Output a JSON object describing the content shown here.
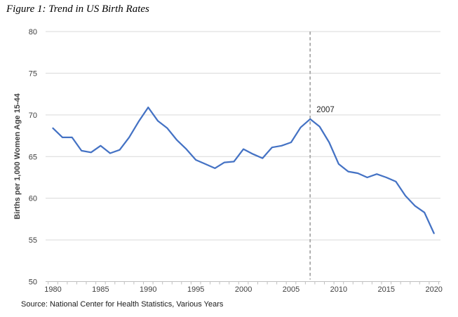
{
  "page": {
    "title": "Figure 1: Trend in US Birth Rates",
    "source_note": "Source: National Center for Health Statistics, Various Years"
  },
  "chart_data": {
    "type": "line",
    "title": "Figure 1: Trend in US Birth Rates",
    "xlabel": "",
    "ylabel": "Births per 1,000 Women Age 15-44",
    "x": [
      1980,
      1981,
      1982,
      1983,
      1984,
      1985,
      1986,
      1987,
      1988,
      1989,
      1990,
      1991,
      1992,
      1993,
      1994,
      1995,
      1996,
      1997,
      1998,
      1999,
      2000,
      2001,
      2002,
      2003,
      2004,
      2005,
      2006,
      2007,
      2008,
      2009,
      2010,
      2011,
      2012,
      2013,
      2014,
      2015,
      2016,
      2017,
      2018,
      2019,
      2020
    ],
    "series": [
      {
        "name": "Births per 1,000 Women Age 15-44",
        "values": [
          68.4,
          67.3,
          67.3,
          65.7,
          65.5,
          66.3,
          65.4,
          65.8,
          67.3,
          69.2,
          70.9,
          69.3,
          68.4,
          67.0,
          65.9,
          64.6,
          64.1,
          63.6,
          64.3,
          64.4,
          65.9,
          65.3,
          64.8,
          66.1,
          66.3,
          66.7,
          68.5,
          69.5,
          68.6,
          66.7,
          64.1,
          63.2,
          63.0,
          62.5,
          62.9,
          62.5,
          62.0,
          60.3,
          59.1,
          58.3,
          55.8
        ]
      }
    ],
    "ylim": [
      50,
      80
    ],
    "yticks": [
      50,
      55,
      60,
      65,
      70,
      75,
      80
    ],
    "xticks": [
      1980,
      1985,
      1990,
      1995,
      2000,
      2005,
      2010,
      2015,
      2020
    ],
    "grid": true,
    "legend": "none",
    "annotation": {
      "text": "2007",
      "year": 2007,
      "style": "dashed-vertical-line"
    },
    "colors": {
      "line": "#4472C4",
      "grid": "#d9d9d9",
      "axis": "#bfbfbf",
      "dashed_line": "#a6a6a6",
      "text": "#404040"
    }
  }
}
